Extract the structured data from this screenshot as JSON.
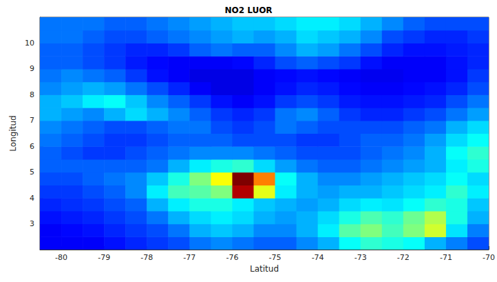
{
  "chart_data": {
    "type": "heatmap",
    "title": "NO2 LUOR",
    "x_label": "Latitud",
    "y_label": "Longitud",
    "xlim": [
      -80.5,
      -70
    ],
    "ylim": [
      2,
      11
    ],
    "xticks": [
      -80,
      -79,
      -78,
      -77,
      -76,
      -75,
      -74,
      -73,
      -72,
      -71,
      -70
    ],
    "yticks": [
      3,
      4,
      5,
      6,
      7,
      8,
      9,
      10
    ],
    "grid": false,
    "x": [
      -80.25,
      -79.75,
      -79.25,
      -78.75,
      -78.25,
      -77.75,
      -77.25,
      -76.75,
      -76.25,
      -75.75,
      -75.25,
      -74.75,
      -74.25,
      -73.75,
      -73.25,
      -72.75,
      -72.25,
      -71.75,
      -71.25,
      -70.75,
      -70.25
    ],
    "y": [
      2.25,
      2.75,
      3.25,
      3.75,
      4.25,
      4.75,
      5.25,
      5.75,
      6.25,
      6.75,
      7.25,
      7.75,
      8.25,
      8.75,
      9.25,
      9.75,
      10.25,
      10.75
    ],
    "color_range": [
      0,
      1
    ],
    "cells": [
      [
        0.12,
        0.12,
        0.12,
        0.14,
        0.16,
        0.18,
        0.2,
        0.24,
        0.26,
        0.24,
        0.22,
        0.22,
        0.26,
        0.3,
        0.38,
        0.42,
        0.4,
        0.38,
        0.3,
        0.25,
        0.2
      ],
      [
        0.12,
        0.13,
        0.14,
        0.16,
        0.18,
        0.2,
        0.24,
        0.3,
        0.32,
        0.3,
        0.26,
        0.26,
        0.3,
        0.36,
        0.46,
        0.5,
        0.44,
        0.5,
        0.58,
        0.35,
        0.25
      ],
      [
        0.14,
        0.15,
        0.16,
        0.18,
        0.2,
        0.24,
        0.3,
        0.34,
        0.36,
        0.34,
        0.3,
        0.28,
        0.3,
        0.34,
        0.4,
        0.45,
        0.42,
        0.48,
        0.55,
        0.4,
        0.3
      ],
      [
        0.16,
        0.17,
        0.18,
        0.2,
        0.22,
        0.3,
        0.36,
        0.4,
        0.4,
        0.36,
        0.32,
        0.3,
        0.28,
        0.3,
        0.34,
        0.36,
        0.35,
        0.38,
        0.42,
        0.4,
        0.32
      ],
      [
        0.18,
        0.18,
        0.2,
        0.22,
        0.26,
        0.36,
        0.44,
        0.46,
        0.5,
        0.95,
        0.6,
        0.36,
        0.3,
        0.28,
        0.3,
        0.3,
        0.32,
        0.34,
        0.36,
        0.42,
        0.36
      ],
      [
        0.2,
        0.2,
        0.22,
        0.24,
        0.26,
        0.32,
        0.4,
        0.5,
        0.62,
        1.0,
        0.75,
        0.38,
        0.3,
        0.26,
        0.26,
        0.28,
        0.3,
        0.32,
        0.34,
        0.38,
        0.34
      ],
      [
        0.22,
        0.22,
        0.22,
        0.22,
        0.22,
        0.24,
        0.3,
        0.36,
        0.4,
        0.42,
        0.34,
        0.28,
        0.24,
        0.22,
        0.22,
        0.24,
        0.26,
        0.28,
        0.3,
        0.36,
        0.4
      ],
      [
        0.22,
        0.2,
        0.18,
        0.18,
        0.2,
        0.22,
        0.24,
        0.26,
        0.26,
        0.26,
        0.24,
        0.22,
        0.2,
        0.2,
        0.2,
        0.22,
        0.24,
        0.26,
        0.3,
        0.38,
        0.42
      ],
      [
        0.24,
        0.22,
        0.2,
        0.18,
        0.18,
        0.2,
        0.22,
        0.22,
        0.22,
        0.2,
        0.2,
        0.2,
        0.18,
        0.18,
        0.2,
        0.22,
        0.22,
        0.24,
        0.28,
        0.34,
        0.38
      ],
      [
        0.26,
        0.24,
        0.22,
        0.2,
        0.2,
        0.22,
        0.24,
        0.24,
        0.2,
        0.18,
        0.2,
        0.24,
        0.22,
        0.2,
        0.2,
        0.2,
        0.2,
        0.22,
        0.24,
        0.3,
        0.34
      ],
      [
        0.3,
        0.28,
        0.26,
        0.3,
        0.34,
        0.3,
        0.26,
        0.22,
        0.18,
        0.16,
        0.18,
        0.24,
        0.26,
        0.22,
        0.18,
        0.16,
        0.16,
        0.18,
        0.2,
        0.24,
        0.28
      ],
      [
        0.3,
        0.32,
        0.36,
        0.38,
        0.32,
        0.26,
        0.22,
        0.18,
        0.14,
        0.12,
        0.14,
        0.18,
        0.2,
        0.18,
        0.15,
        0.14,
        0.14,
        0.15,
        0.16,
        0.2,
        0.24
      ],
      [
        0.26,
        0.28,
        0.3,
        0.28,
        0.24,
        0.2,
        0.16,
        0.12,
        0.1,
        0.1,
        0.12,
        0.14,
        0.16,
        0.15,
        0.13,
        0.12,
        0.12,
        0.13,
        0.14,
        0.16,
        0.2
      ],
      [
        0.24,
        0.26,
        0.24,
        0.22,
        0.18,
        0.14,
        0.12,
        0.1,
        0.1,
        0.1,
        0.12,
        0.13,
        0.14,
        0.13,
        0.12,
        0.11,
        0.11,
        0.12,
        0.12,
        0.14,
        0.18
      ],
      [
        0.22,
        0.22,
        0.2,
        0.18,
        0.15,
        0.13,
        0.12,
        0.12,
        0.12,
        0.13,
        0.16,
        0.2,
        0.22,
        0.2,
        0.18,
        0.14,
        0.12,
        0.12,
        0.12,
        0.14,
        0.16
      ],
      [
        0.22,
        0.22,
        0.2,
        0.18,
        0.16,
        0.16,
        0.18,
        0.22,
        0.24,
        0.22,
        0.22,
        0.26,
        0.3,
        0.28,
        0.24,
        0.2,
        0.16,
        0.14,
        0.14,
        0.15,
        0.16
      ],
      [
        0.24,
        0.24,
        0.22,
        0.2,
        0.2,
        0.22,
        0.24,
        0.26,
        0.28,
        0.3,
        0.28,
        0.3,
        0.34,
        0.32,
        0.3,
        0.26,
        0.2,
        0.18,
        0.16,
        0.16,
        0.18
      ],
      [
        0.24,
        0.24,
        0.24,
        0.22,
        0.22,
        0.24,
        0.26,
        0.28,
        0.3,
        0.32,
        0.32,
        0.34,
        0.36,
        0.36,
        0.34,
        0.3,
        0.26,
        0.22,
        0.2,
        0.2,
        0.2
      ]
    ]
  }
}
